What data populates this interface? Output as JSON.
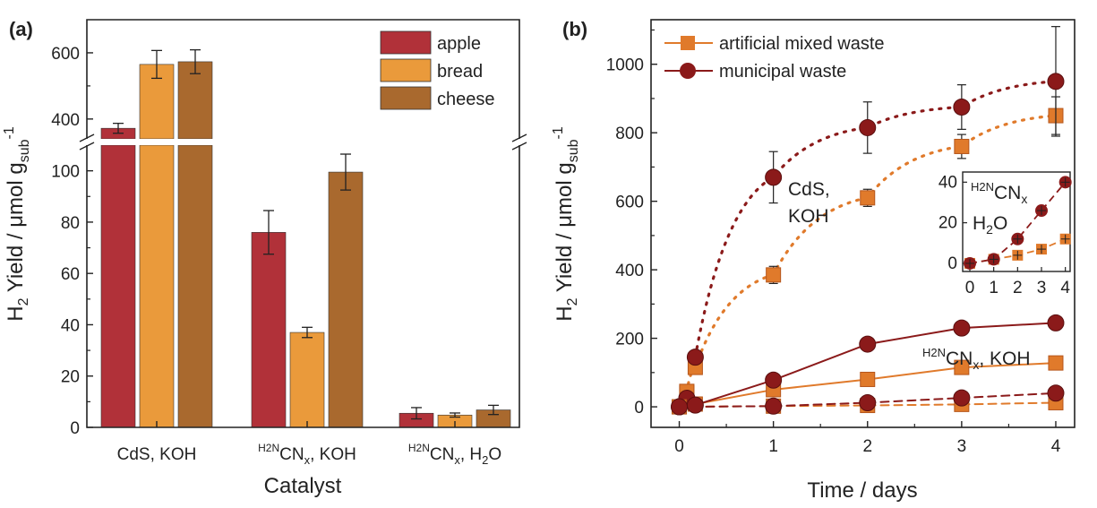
{
  "chart_data": [
    {
      "panel_label": "(a)",
      "type": "bar",
      "categories": [
        "CdS, KOH",
        "CN_x, KOH",
        "CN_x, H2O"
      ],
      "category_display": [
        {
          "pre": "",
          "main": "CdS, KOH",
          "x": "",
          "post": "",
          "sub": ""
        },
        {
          "pre": "H2N",
          "main": "CN",
          "x": "x",
          "post": ", KOH",
          "sub": ""
        },
        {
          "pre": "H2N",
          "main": "CN",
          "x": "x",
          "post": ", H",
          "sub": "2",
          "tail": "O"
        }
      ],
      "series": [
        {
          "name": "apple",
          "color": "#b13139",
          "values": [
            372,
            76,
            5.5
          ],
          "errors": [
            15,
            8.5,
            2.2
          ]
        },
        {
          "name": "bread",
          "color": "#ea9a3b",
          "values": [
            565,
            37,
            4.8
          ],
          "errors": [
            42,
            2,
            0.8
          ]
        },
        {
          "name": "cheese",
          "color": "#a9692e",
          "values": [
            573,
            99.5,
            6.8
          ],
          "errors": [
            36,
            7,
            1.8
          ]
        }
      ],
      "y_break": true,
      "ylim_lower": [
        0,
        110
      ],
      "ylim_upper": [
        340,
        700
      ],
      "yticks_lower": [
        0,
        20,
        40,
        60,
        80,
        100
      ],
      "yticks_upper": [
        400,
        600
      ],
      "xlabel": "Catalyst",
      "ylabel": {
        "h": "H",
        "h_sub": "2",
        "text": " Yield / μmol g",
        "sub": "sub",
        "sup": "-1"
      },
      "legend_position": "top-right"
    },
    {
      "panel_label": "(b)",
      "type": "line",
      "xlabel": "Time / days",
      "ylabel": {
        "h": "H",
        "h_sub": "2",
        "text": " Yield / μmol g",
        "sub": "sub",
        "sup": "-1"
      },
      "xlim": [
        -0.3,
        4.2
      ],
      "ylim": [
        -60,
        1130
      ],
      "xticks": [
        0,
        1,
        2,
        3,
        4
      ],
      "yticks": [
        0,
        200,
        400,
        600,
        800,
        1000
      ],
      "legend": [
        {
          "name": "artificial mixed waste",
          "marker": "square",
          "color": "#e07a2b"
        },
        {
          "name": "municipal waste",
          "marker": "circle",
          "color": "#8b1a1a"
        }
      ],
      "legend_position": "top-left",
      "series": [
        {
          "name": "artificial mixed waste",
          "group": "CdS, KOH",
          "marker": "square",
          "color": "#e07a2b",
          "line": "dotted",
          "x": [
            0.08,
            0.17,
            1,
            2,
            3,
            4
          ],
          "y": [
            40,
            115,
            385,
            610,
            760,
            850
          ],
          "errors": [
            15,
            15,
            25,
            25,
            35,
            55
          ]
        },
        {
          "name": "municipal waste",
          "group": "CdS, KOH",
          "marker": "circle",
          "color": "#8b1a1a",
          "line": "dotted",
          "x": [
            0.17,
            1,
            2,
            3,
            4
          ],
          "y": [
            145,
            670,
            815,
            875,
            950
          ],
          "errors": [
            15,
            75,
            75,
            65,
            160
          ]
        },
        {
          "name": "artificial mixed waste",
          "group": "CN_x, KOH",
          "marker": "square",
          "color": "#e07a2b",
          "line": "solid",
          "x": [
            0,
            0.08,
            0.17,
            1,
            2,
            3,
            4
          ],
          "y": [
            0,
            45,
            8,
            50,
            80,
            115,
            128
          ],
          "errors": [
            5,
            10,
            8,
            10,
            15,
            15,
            15
          ]
        },
        {
          "name": "municipal waste",
          "group": "CN_x, KOH",
          "marker": "circle",
          "color": "#8b1a1a",
          "line": "solid",
          "x": [
            0,
            0.08,
            0.17,
            1,
            2,
            3,
            4
          ],
          "y": [
            0,
            25,
            5,
            78,
            183,
            230,
            245
          ],
          "errors": [
            5,
            10,
            8,
            10,
            12,
            12,
            12
          ]
        },
        {
          "name": "artificial mixed waste",
          "group": "CN_x, H2O",
          "marker": "square",
          "color": "#e07a2b",
          "line": "dashed",
          "x": [
            0,
            1,
            2,
            3,
            4
          ],
          "y": [
            0,
            2,
            4,
            7,
            12
          ],
          "errors": [
            3,
            3,
            3,
            3,
            3
          ]
        },
        {
          "name": "municipal waste",
          "group": "CN_x, H2O",
          "marker": "circle",
          "color": "#8b1a1a",
          "line": "dashed",
          "x": [
            0,
            1,
            2,
            3,
            4
          ],
          "y": [
            0,
            2,
            12,
            26,
            40
          ],
          "errors": [
            3,
            3,
            3,
            3,
            3
          ]
        }
      ],
      "annotations": [
        {
          "label": "cds_koh",
          "line1": "CdS,",
          "line2": "KOH"
        },
        {
          "label": "cnx_koh",
          "pre": "H2N",
          "main": "CN",
          "x": "x",
          "post": ", KOH"
        }
      ],
      "inset": {
        "xlim": [
          -0.3,
          4.2
        ],
        "ylim": [
          -4,
          45
        ],
        "xticks": [
          0,
          1,
          2,
          3,
          4
        ],
        "yticks": [
          0,
          20,
          40
        ],
        "label": {
          "pre": "H2N",
          "main": "CN",
          "x": "x",
          "line2": "H",
          "line2_sub": "2",
          "line2_tail": "O"
        },
        "series": [
          {
            "name": "artificial mixed waste",
            "marker": "square",
            "color": "#e07a2b",
            "line": "dashed",
            "x": [
              0,
              1,
              2,
              3,
              4
            ],
            "y": [
              0,
              2,
              4,
              7,
              12
            ]
          },
          {
            "name": "municipal waste",
            "marker": "circle",
            "color": "#8b1a1a",
            "line": "dashed",
            "x": [
              0,
              1,
              2,
              3,
              4
            ],
            "y": [
              0,
              2,
              12,
              26,
              40
            ]
          }
        ]
      }
    }
  ]
}
